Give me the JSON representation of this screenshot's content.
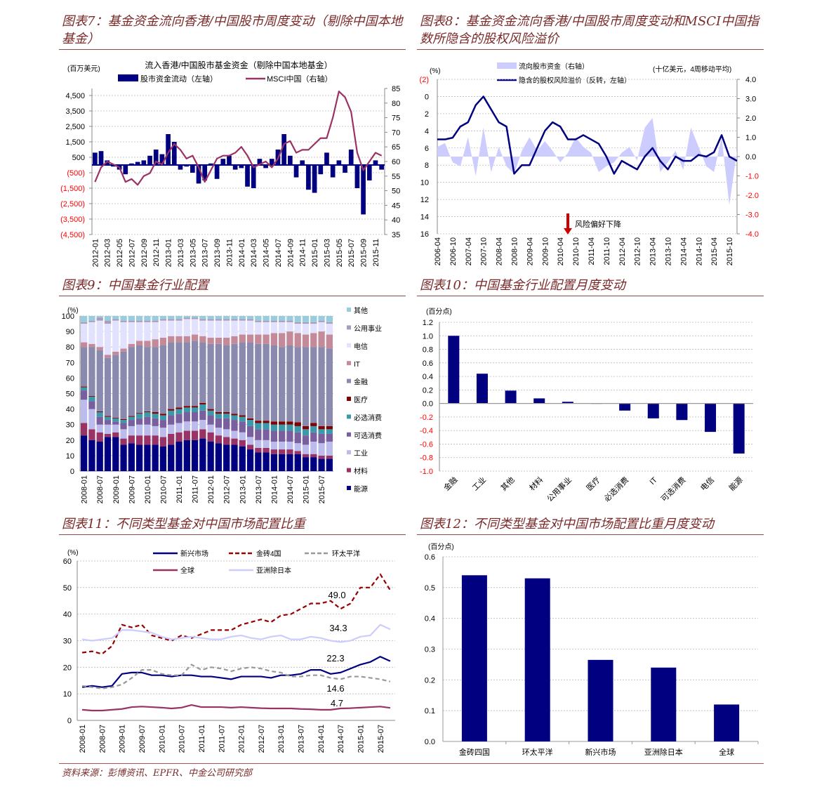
{
  "titles": {
    "fig7": "图表7：基金资金流向香港/中国股市周度变动（剔除中国本地基金）",
    "fig8": "图表8：基金资金流向香港/中国股市周度变动和MSCI中国指数所隐含的股权风险溢价",
    "fig9": "图表9：中国基金行业配置",
    "fig10": "图表10：中国基金行业配置月度变动",
    "fig11": "图表11：不同类型基金对中国市场配置比重",
    "fig12": "图表12：不同类型基金对中国市场配置比重月度变动"
  },
  "footer": "资料来源：彭博资讯、EPFR、中金公司研究部",
  "colors": {
    "navy": "#000080",
    "msci": "#993366",
    "red": "#ff0000",
    "lavender": "#ccccff",
    "title": "#7b2a2a"
  },
  "chart_data": [
    {
      "id": "fig7",
      "type": "bar+line",
      "title": "流入香港/中国股市基金资金（剔除中国本地基金）",
      "ylabel_left": "(百万美元)",
      "ylim_left": [
        -4500,
        4500
      ],
      "ylim_right": [
        35,
        85
      ],
      "yticks_left": [
        "4,500",
        "3,500",
        "2,500",
        "1,500",
        "500",
        "(500)",
        "(1,500)",
        "(2,500)",
        "(3,500)",
        "(4,500)"
      ],
      "yticks_left_values": [
        4500,
        3500,
        2500,
        1500,
        500,
        -500,
        -1500,
        -2500,
        -3500,
        -4500
      ],
      "yticks_right": [
        "85",
        "80",
        "75",
        "70",
        "65",
        "60",
        "55",
        "50",
        "45",
        "40",
        "35"
      ],
      "xticks": [
        "2012-01",
        "2012-03",
        "2012-05",
        "2012-07",
        "2012-09",
        "2012-11",
        "2013-01",
        "2013-03",
        "2013-05",
        "2013-07",
        "2013-09",
        "2013-11",
        "2014-01",
        "2014-03",
        "2014-05",
        "2014-07",
        "2014-09",
        "2014-11",
        "2015-01",
        "2015-03",
        "2015-05",
        "2015-07",
        "2015-09",
        "2015-11"
      ],
      "series": [
        {
          "name": "股市资金流动（左轴）",
          "type": "bar",
          "color": "#000080",
          "values": [
            800,
            900,
            300,
            -100,
            -300,
            -600,
            100,
            200,
            300,
            600,
            1000,
            700,
            2000,
            1500,
            -300,
            -100,
            -500,
            -1200,
            -1000,
            100,
            -900,
            400,
            600,
            -300,
            -200,
            -1400,
            -1500,
            400,
            -200,
            400,
            1000,
            2000,
            600,
            -800,
            300,
            -1600,
            -1800,
            -600,
            800,
            -800,
            300,
            -500,
            1000,
            -1500,
            -3200,
            -1000,
            300,
            -300
          ]
        },
        {
          "name": "MSCI中国（右轴）",
          "type": "line",
          "color": "#993366",
          "values": [
            53,
            58,
            60,
            59,
            58,
            53,
            54,
            52,
            55,
            56,
            60,
            59,
            63,
            66,
            64,
            61,
            62,
            58,
            53,
            57,
            61,
            62,
            62,
            63,
            65,
            62,
            58,
            59,
            60,
            58,
            61,
            66,
            67,
            63,
            64,
            64,
            66,
            68,
            68,
            75,
            84,
            82,
            77,
            63,
            57,
            60,
            63,
            62
          ]
        }
      ]
    },
    {
      "id": "fig8",
      "type": "line+area",
      "ylabel_left": "(%)",
      "ylabel_right": "(十亿美元，4周移动平均)",
      "ylim_left": [
        -2,
        16
      ],
      "ylim_right": [
        -4,
        4
      ],
      "yticks_left": [
        "(2)",
        "0",
        "2",
        "4",
        "6",
        "8",
        "10",
        "12",
        "14",
        "16"
      ],
      "yticks_right": [
        "4.0",
        "3.0",
        "2.0",
        "1.0",
        "0.0",
        "-1.0",
        "-2.0",
        "-3.0",
        "-4.0"
      ],
      "xticks": [
        "2006-04",
        "2006-10",
        "2007-04",
        "2007-10",
        "2008-04",
        "2008-10",
        "2009-04",
        "2009-10",
        "2010-04",
        "2010-10",
        "2011-04",
        "2011-10",
        "2012-04",
        "2012-10",
        "2013-04",
        "2013-10",
        "2014-04",
        "2014-10",
        "2015-04",
        "2015-10"
      ],
      "annotation": "风险偏好下降",
      "series": [
        {
          "name": "流向股市资金（右轴）",
          "type": "area",
          "color": "#ccccff",
          "values": [
            0.5,
            0.7,
            -0.3,
            -0.5,
            1.0,
            -1.0,
            1.5,
            -0.8,
            0.5,
            -0.5,
            -0.9,
            0.3,
            1.0,
            0.3,
            0.8,
            0.3,
            -0.3,
            0.2,
            1.0,
            0.5,
            0.2,
            -0.8,
            -0.5,
            -0.3,
            0.2,
            0.5,
            -0.2,
            1.5,
            2.0,
            -0.8,
            -0.3,
            0.3,
            -0.7,
            1.5,
            0.5,
            -0.5,
            -0.8,
            1.0,
            -2.5,
            0.3
          ]
        },
        {
          "name": "隐含的股权风险溢价（反转，左轴）",
          "type": "line",
          "color": "#000080",
          "values": [
            5,
            5,
            4.8,
            3.5,
            3,
            1,
            0,
            1.5,
            3,
            3.5,
            9,
            8,
            8,
            6,
            4,
            3,
            3.5,
            5,
            5,
            4.5,
            5,
            5.5,
            7,
            9,
            7.5,
            8,
            8.5,
            7,
            6,
            7.5,
            8.5,
            7,
            7.5,
            7.5,
            6.8,
            7,
            6.5,
            4.5,
            7,
            7.5
          ]
        }
      ]
    },
    {
      "id": "fig9",
      "type": "stacked-bar",
      "ylabel": "(%)",
      "ylim": [
        0,
        100
      ],
      "yticks": [
        "0",
        "10",
        "20",
        "30",
        "40",
        "50",
        "60",
        "70",
        "80",
        "90",
        "100"
      ],
      "xticks": [
        "2008-01",
        "2008-07",
        "2009-01",
        "2009-07",
        "2010-01",
        "2010-07",
        "2011-01",
        "2011-07",
        "2012-01",
        "2012-07",
        "2013-01",
        "2013-07",
        "2014-01",
        "2014-07",
        "2015-01",
        "2015-07"
      ],
      "series": [
        {
          "name": "能源",
          "color": "#000080",
          "values": [
            23,
            20,
            19,
            22,
            22,
            17,
            18,
            17,
            17,
            17,
            16,
            17,
            19,
            20,
            20,
            21,
            19,
            18,
            17,
            17,
            16,
            14,
            12,
            12,
            11,
            11,
            11,
            11,
            9,
            9,
            8,
            8
          ]
        },
        {
          "name": "材料",
          "color": "#993366",
          "values": [
            8,
            7,
            6,
            2,
            3,
            4,
            5,
            6,
            6,
            6,
            6,
            7,
            6,
            6,
            6,
            6,
            6,
            5,
            5,
            4,
            4,
            3,
            3,
            3,
            3,
            3,
            3,
            2,
            2,
            2,
            2,
            2
          ]
        },
        {
          "name": "工业",
          "color": "#bcbcec",
          "values": [
            15,
            13,
            5,
            6,
            5,
            6,
            6,
            7,
            7,
            6,
            6,
            6,
            6,
            6,
            6,
            6,
            5,
            5,
            5,
            5,
            5,
            5,
            5,
            5,
            5,
            5,
            5,
            5,
            6,
            8,
            8,
            9
          ]
        },
        {
          "name": "可选消费",
          "color": "#7a5f9e",
          "values": [
            6,
            5,
            5,
            3,
            2,
            4,
            4,
            4,
            5,
            5,
            5,
            6,
            6,
            6,
            6,
            6,
            6,
            6,
            7,
            7,
            7,
            7,
            7,
            7,
            7,
            7,
            7,
            7,
            6,
            6,
            6,
            5
          ]
        },
        {
          "name": "必选消费",
          "color": "#3a9aac",
          "values": [
            2,
            3,
            3,
            2,
            2,
            2,
            2,
            3,
            3,
            3,
            3,
            3,
            3,
            3,
            3,
            4,
            3,
            3,
            3,
            3,
            3,
            4,
            4,
            4,
            4,
            4,
            4,
            4,
            4,
            4,
            3,
            3
          ]
        },
        {
          "name": "医疗",
          "color": "#800000",
          "values": [
            0.5,
            0.5,
            0.5,
            0.5,
            0.5,
            0.5,
            0.5,
            0.5,
            0.5,
            1,
            1,
            1,
            1,
            1,
            1,
            1,
            1,
            1,
            1,
            1,
            1,
            1,
            1.5,
            1.5,
            2,
            2,
            2,
            2.5,
            2,
            2,
            2,
            2
          ]
        },
        {
          "name": "金融",
          "color": "#8a8aae",
          "values": [
            25.5,
            31.5,
            39.5,
            37.5,
            40.5,
            43.5,
            44.5,
            43.5,
            41.5,
            42,
            44,
            43,
            42,
            41,
            42,
            39,
            42,
            44,
            43,
            45,
            47,
            49,
            49.5,
            49.5,
            49,
            48,
            49,
            48.5,
            51,
            49,
            51,
            50
          ]
        },
        {
          "name": "IT",
          "color": "#c48a9a",
          "values": [
            3,
            2,
            2,
            2,
            2,
            2,
            2,
            3,
            4,
            5,
            5,
            4,
            4,
            4,
            4,
            4,
            4,
            4,
            5,
            5,
            5,
            5,
            6,
            6,
            8,
            9,
            9,
            9,
            8,
            9,
            10,
            9
          ]
        },
        {
          "name": "电信",
          "color": "#e2e2ff",
          "values": [
            12,
            14,
            17,
            20,
            20,
            17,
            14,
            12,
            12,
            11,
            11,
            10,
            10,
            11,
            10,
            10,
            11,
            11,
            11,
            10,
            9,
            9,
            8,
            8,
            7,
            7,
            6,
            6,
            7,
            6,
            6,
            7
          ]
        },
        {
          "name": "公用事业",
          "color": "#aa9cbc",
          "values": [
            1,
            1,
            2,
            2,
            1,
            1,
            1,
            1,
            1,
            1,
            1,
            1,
            1,
            1,
            1,
            1,
            1,
            1,
            1,
            1,
            1,
            1,
            1,
            1,
            1,
            1,
            1,
            1,
            1,
            1,
            1,
            1
          ]
        },
        {
          "name": "其他",
          "color": "#99ccdd",
          "values": [
            4,
            3,
            1,
            3,
            2,
            3,
            3,
            3,
            3,
            3,
            2,
            2,
            2,
            1,
            1,
            2,
            2,
            2,
            2,
            2,
            2,
            2,
            3,
            3,
            3,
            3,
            3,
            4,
            4,
            4,
            3,
            4
          ]
        }
      ]
    },
    {
      "id": "fig10",
      "type": "bar",
      "ylabel": "(百分点)",
      "ylim": [
        -1.0,
        1.2
      ],
      "yticks": [
        "1.2",
        "1.0",
        "0.8",
        "0.6",
        "0.4",
        "0.2",
        "0.0",
        "-0.2",
        "-0.4",
        "-0.6",
        "-0.8",
        "-1.0"
      ],
      "categories": [
        "金融",
        "工业",
        "其他",
        "材料",
        "公用事业",
        "医疗",
        "必选消费",
        "IT",
        "可选消费",
        "电信",
        "能源"
      ],
      "values": [
        1.0,
        0.44,
        0.19,
        0.075,
        0.025,
        0.005,
        -0.105,
        -0.22,
        -0.245,
        -0.42,
        -0.74
      ]
    },
    {
      "id": "fig11",
      "type": "line",
      "ylabel": "(%)",
      "ylim": [
        0,
        60
      ],
      "yticks": [
        "0",
        "10",
        "20",
        "30",
        "40",
        "50",
        "60"
      ],
      "xticks": [
        "2008-01",
        "2008-07",
        "2009-01",
        "2009-07",
        "2010-01",
        "2010-07",
        "2011-01",
        "2011-07",
        "2012-01",
        "2012-07",
        "2013-01",
        "2013-07",
        "2014-01",
        "2014-07",
        "2015-01",
        "2015-07"
      ],
      "series": [
        {
          "name": "新兴市场",
          "color": "#000080",
          "dash": false,
          "last_label": "22.3",
          "values": [
            12.5,
            13,
            12.5,
            13,
            17.5,
            18,
            18,
            17,
            17,
            16.5,
            17,
            17,
            16.5,
            16.5,
            16,
            15.5,
            16.5,
            16.5,
            16.5,
            16,
            17,
            17,
            17.5,
            19,
            19,
            17.5,
            18,
            19.5,
            21,
            22,
            24,
            22.3
          ]
        },
        {
          "name": "金砖4国",
          "color": "#990000",
          "dash": true,
          "last_label": "49.0",
          "values": [
            25.5,
            26,
            25,
            28,
            36,
            35,
            36,
            32,
            31,
            30,
            32,
            31,
            32.5,
            34,
            34,
            34,
            36,
            37,
            38,
            37,
            39.5,
            40,
            42,
            44,
            44,
            45,
            42,
            44,
            50,
            50,
            55,
            49
          ]
        },
        {
          "name": "环太平洋",
          "color": "#999999",
          "dash": true,
          "last_label": "14.6",
          "values": [
            13,
            12.5,
            12,
            12.5,
            13.5,
            16,
            19,
            19,
            17.5,
            17,
            17,
            21,
            19,
            20,
            19.5,
            18.5,
            19.5,
            20,
            19.5,
            18.5,
            18,
            16.5,
            16.5,
            17,
            17,
            16,
            15.5,
            16.5,
            16.5,
            16,
            15.5,
            14.6
          ]
        },
        {
          "name": "全球",
          "color": "#993366",
          "dash": false,
          "last_label": "4.7",
          "values": [
            4,
            3.7,
            3.7,
            4,
            4.3,
            5,
            5.2,
            5,
            4.8,
            4.5,
            4.8,
            5.8,
            5,
            5,
            5,
            4.8,
            5,
            4.8,
            4.6,
            4.5,
            4.5,
            4.5,
            4.3,
            4.2,
            4,
            4,
            4.5,
            4.6,
            4.8,
            5,
            5.2,
            4.7
          ]
        },
        {
          "name": "亚洲除日本",
          "color": "#ccccff",
          "dash": false,
          "last_label": "34.3",
          "values": [
            30.5,
            30,
            30.5,
            31,
            34,
            34,
            33.5,
            33,
            31.5,
            30.5,
            31,
            31.5,
            31,
            30.5,
            30.5,
            31.5,
            32,
            31,
            30.5,
            31.5,
            32,
            30.5,
            30.5,
            31.5,
            31,
            30,
            29.5,
            30,
            31.5,
            32,
            36,
            34.3
          ]
        }
      ]
    },
    {
      "id": "fig12",
      "type": "bar",
      "ylabel": "(百分点)",
      "ylim": [
        0,
        0.6
      ],
      "yticks": [
        "0.0",
        "0.1",
        "0.2",
        "0.3",
        "0.4",
        "0.5",
        "0.6"
      ],
      "categories": [
        "金砖四国",
        "环太平洋",
        "新兴市场",
        "亚洲除日本",
        "全球"
      ],
      "values": [
        0.54,
        0.53,
        0.265,
        0.24,
        0.12
      ]
    }
  ]
}
